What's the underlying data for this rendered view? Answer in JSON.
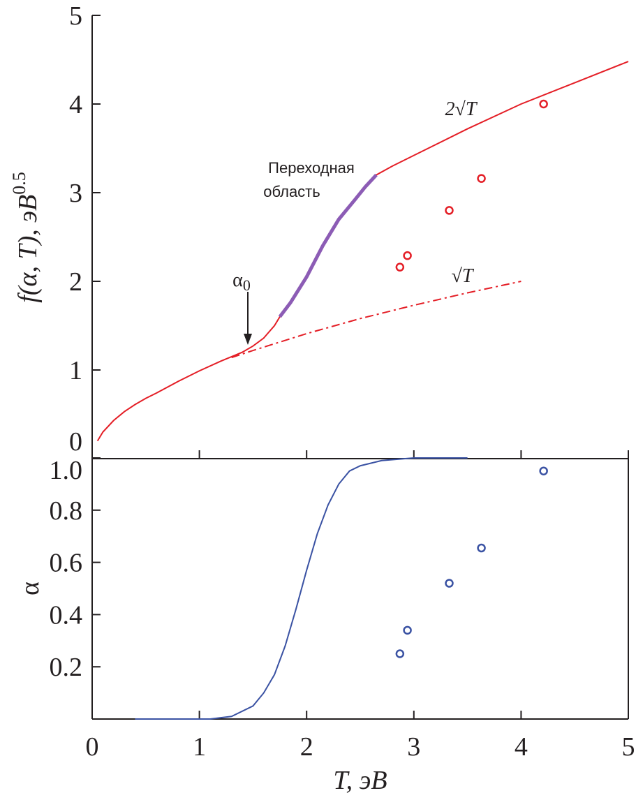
{
  "chart_data": [
    {
      "type": "line",
      "ylabel": "f(α, T), эВ",
      "ylabel_exponent": "0.5",
      "annotations": {
        "two_sqrt": "2√T",
        "sqrt": "√T",
        "transition_line1": "Переходная",
        "transition_line2": "область",
        "alpha0": "α",
        "alpha0_sub": "0"
      },
      "xlim": [
        0,
        5
      ],
      "xticks": [
        0,
        1,
        2,
        3,
        4,
        5
      ],
      "ylim": [
        0,
        5
      ],
      "yticks": [
        0,
        1,
        2,
        3,
        4,
        5
      ],
      "series": [
        {
          "kind": "solid",
          "color": "#e41e26",
          "x": [
            0.05,
            0.1,
            0.2,
            0.3,
            0.4,
            0.5,
            0.6,
            0.8,
            1.0,
            1.2,
            1.4,
            1.5,
            1.6,
            1.7,
            1.75,
            1.85,
            2.0,
            2.15,
            2.3,
            2.45,
            2.55,
            2.65,
            2.8,
            3.0,
            3.5,
            4.0,
            4.5,
            5.0
          ],
          "values": [
            0.2,
            0.3,
            0.43,
            0.53,
            0.61,
            0.68,
            0.74,
            0.87,
            0.99,
            1.1,
            1.2,
            1.27,
            1.36,
            1.5,
            1.6,
            1.76,
            2.05,
            2.4,
            2.7,
            2.92,
            3.07,
            3.2,
            3.3,
            3.42,
            3.72,
            4.0,
            4.24,
            4.48
          ]
        },
        {
          "kind": "dashdot",
          "color": "#e41e26",
          "x": [
            1.3,
            1.5,
            2.0,
            2.5,
            3.0,
            3.5,
            4.0
          ],
          "values": [
            1.14,
            1.22,
            1.41,
            1.58,
            1.73,
            1.87,
            2.0
          ]
        },
        {
          "kind": "highlight",
          "color": "#8c5cb5",
          "x": [
            1.75,
            1.85,
            2.0,
            2.15,
            2.3,
            2.45,
            2.55,
            2.65
          ],
          "values": [
            1.6,
            1.76,
            2.05,
            2.4,
            2.7,
            2.92,
            3.07,
            3.2
          ]
        },
        {
          "kind": "markers",
          "color": "#e41e26",
          "x": [
            2.87,
            2.94,
            3.33,
            3.63,
            4.21
          ],
          "values": [
            2.16,
            2.29,
            2.8,
            3.16,
            4.0
          ]
        }
      ]
    },
    {
      "type": "line",
      "xlabel": "T, эВ",
      "ylabel": "α",
      "xlim": [
        0,
        5
      ],
      "xticks": [
        0,
        1,
        2,
        3,
        4,
        5
      ],
      "ylim": [
        0,
        1
      ],
      "yticks": [
        0.2,
        0.4,
        0.6,
        0.8,
        {
          "value": 1,
          "label": "1.0"
        }
      ],
      "series": [
        {
          "kind": "solid",
          "color": "#3a52a3",
          "x": [
            0.4,
            1.1,
            1.3,
            1.5,
            1.6,
            1.7,
            1.8,
            1.9,
            2.0,
            2.1,
            2.2,
            2.3,
            2.4,
            2.5,
            2.7,
            3.0,
            3.5
          ],
          "values": [
            0,
            0,
            0.01,
            0.05,
            0.1,
            0.17,
            0.28,
            0.42,
            0.57,
            0.71,
            0.82,
            0.9,
            0.95,
            0.97,
            0.99,
            1.0,
            1.0
          ]
        },
        {
          "kind": "markers",
          "color": "#3a52a3",
          "x": [
            2.87,
            2.94,
            3.33,
            3.63,
            4.21
          ],
          "values": [
            0.25,
            0.34,
            0.52,
            0.655,
            0.95
          ]
        }
      ]
    }
  ]
}
